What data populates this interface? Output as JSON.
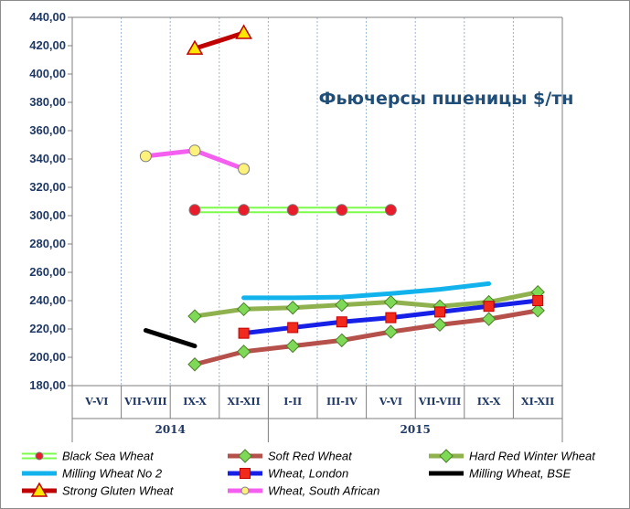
{
  "chart_data": {
    "type": "line",
    "title": "Фьючерсы пшеницы $/тн",
    "categories": [
      "V-VI",
      "VII-VIII",
      "IX-X",
      "XI-XII",
      "I-II",
      "III-IV",
      "V-VI",
      "VII-VIII",
      "IX-X",
      "XI-XII"
    ],
    "groups": [
      {
        "label": "2014",
        "span": [
          0,
          3
        ]
      },
      {
        "label": "2015",
        "span": [
          4,
          9
        ]
      }
    ],
    "ylim": [
      180,
      440
    ],
    "ytick_step": 20,
    "yticks": [
      "180,00",
      "200,00",
      "220,00",
      "240,00",
      "260,00",
      "280,00",
      "300,00",
      "320,00",
      "340,00",
      "360,00",
      "380,00",
      "400,00",
      "420,00",
      "440,00"
    ],
    "grid": "vertical",
    "legend_position": "bottom",
    "series": [
      {
        "name": "Black Sea Wheat",
        "color": "#7cfc4a",
        "style": "double",
        "marker": "circle",
        "marker_color": "#e81c2a",
        "points": [
          [
            2,
            304
          ],
          [
            3,
            304
          ],
          [
            4,
            304
          ],
          [
            5,
            304
          ],
          [
            6,
            304
          ]
        ]
      },
      {
        "name": "Soft Red Wheat",
        "color": "#b5504b",
        "style": "solid",
        "marker": "diamond",
        "marker_color": "#7ed957",
        "points": [
          [
            2,
            195
          ],
          [
            3,
            204
          ],
          [
            4,
            208
          ],
          [
            5,
            212
          ],
          [
            6,
            218
          ],
          [
            7,
            223
          ],
          [
            8,
            227
          ],
          [
            9,
            233
          ]
        ]
      },
      {
        "name": "Hard Red Winter Wheat",
        "color": "#8fb24e",
        "style": "solid",
        "marker": "diamond",
        "marker_color": "#7ed957",
        "points": [
          [
            2,
            229
          ],
          [
            3,
            234
          ],
          [
            4,
            235
          ],
          [
            5,
            237
          ],
          [
            6,
            239
          ],
          [
            7,
            236
          ],
          [
            8,
            239
          ],
          [
            9,
            246
          ]
        ]
      },
      {
        "name": "Milling Wheat No 2",
        "color": "#12b3ec",
        "style": "solid",
        "marker": "none",
        "points": [
          [
            3,
            242
          ],
          [
            4,
            242
          ],
          [
            5,
            242.5
          ],
          [
            6,
            245
          ],
          [
            7,
            248
          ],
          [
            8,
            252
          ]
        ]
      },
      {
        "name": "Wheat, London",
        "color": "#1620e6",
        "style": "solid",
        "marker": "square",
        "marker_color": "#f22a1c",
        "points": [
          [
            3,
            217
          ],
          [
            4,
            221
          ],
          [
            5,
            225
          ],
          [
            6,
            228
          ],
          [
            7,
            232
          ],
          [
            8,
            236
          ],
          [
            9,
            240
          ]
        ]
      },
      {
        "name": "Milling Wheat, BSE",
        "color": "#000000",
        "style": "solid",
        "marker": "none",
        "points": [
          [
            1,
            219
          ],
          [
            2,
            208
          ]
        ]
      },
      {
        "name": "Strong Gluten Wheat",
        "color": "#c00000",
        "style": "solid",
        "marker": "triangle",
        "marker_color": "#ffe600",
        "points": [
          [
            2,
            418
          ],
          [
            3,
            429
          ]
        ]
      },
      {
        "name": "Wheat, South African",
        "color": "#f55ff0",
        "style": "solid",
        "marker": "circle",
        "marker_color": "#fff27a",
        "points": [
          [
            1,
            342
          ],
          [
            2,
            346
          ],
          [
            3,
            333
          ]
        ]
      }
    ]
  }
}
